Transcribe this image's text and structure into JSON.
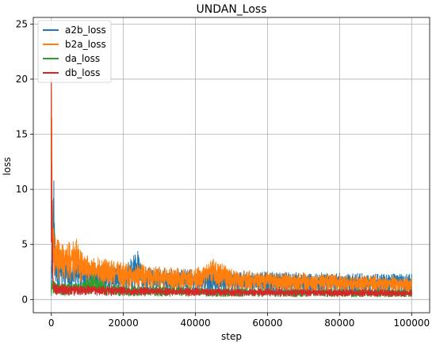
{
  "chart_data": {
    "type": "line",
    "title": "UNDAN_Loss",
    "xlabel": "step",
    "ylabel": "loss",
    "xlim": [
      -5000,
      105000
    ],
    "ylim": [
      -1.2,
      25.6
    ],
    "xticks": [
      0,
      20000,
      40000,
      60000,
      80000,
      100000
    ],
    "yticks": [
      0,
      5,
      10,
      15,
      20,
      25
    ],
    "grid": true,
    "legend_position": "top-left",
    "series": [
      {
        "name": "a2b_loss",
        "color": "#1f77b4",
        "x": [
          0,
          300,
          700,
          1000,
          1500,
          2000,
          3000,
          4000,
          5000,
          6000,
          8000,
          10000,
          12000,
          15000,
          20000,
          24000,
          25000,
          30000,
          35000,
          40000,
          45000,
          50000,
          55000,
          60000,
          65000,
          70000,
          75000,
          80000,
          85000,
          90000,
          95000,
          100000
        ],
        "values": [
          3.0,
          8.5,
          10.8,
          5.8,
          4.6,
          4.1,
          3.9,
          3.8,
          3.7,
          3.6,
          3.5,
          3.4,
          3.3,
          3.2,
          3.1,
          4.4,
          3.0,
          2.9,
          2.8,
          2.75,
          2.7,
          2.65,
          2.6,
          2.55,
          2.5,
          2.45,
          2.45,
          2.4,
          2.4,
          2.35,
          2.35,
          2.3
        ]
      },
      {
        "name": "b2a_loss",
        "color": "#ff7f0e",
        "x": [
          0,
          150,
          300,
          600,
          1000,
          2000,
          3000,
          5000,
          7000,
          10000,
          13000,
          15000,
          20000,
          25000,
          30000,
          35000,
          40000,
          45000,
          50000,
          55000,
          60000,
          65000,
          70000,
          75000,
          80000,
          85000,
          90000,
          95000,
          100000
        ],
        "values": [
          21.0,
          16.5,
          9.0,
          6.5,
          6.0,
          5.4,
          5.0,
          5.2,
          5.5,
          4.0,
          3.8,
          3.7,
          3.4,
          3.2,
          3.0,
          2.9,
          2.8,
          3.7,
          2.8,
          2.6,
          2.5,
          2.4,
          2.4,
          2.3,
          2.3,
          2.2,
          2.2,
          2.1,
          2.0
        ]
      },
      {
        "name": "da_loss",
        "color": "#2ca02c",
        "x": [
          0,
          500,
          1000,
          3000,
          5000,
          8000,
          12000,
          15000,
          20000,
          30000,
          40000,
          50000,
          60000,
          70000,
          80000,
          90000,
          100000
        ],
        "values": [
          1.5,
          2.0,
          1.6,
          1.5,
          1.6,
          1.5,
          2.3,
          1.4,
          1.3,
          1.2,
          1.1,
          1.0,
          1.0,
          0.95,
          0.95,
          0.9,
          0.9
        ]
      },
      {
        "name": "db_loss",
        "color": "#d62728",
        "x": [
          0,
          200,
          500,
          1000,
          3000,
          5000,
          10000,
          20000,
          30000,
          40000,
          50000,
          60000,
          70000,
          80000,
          90000,
          100000
        ],
        "values": [
          20.0,
          9.0,
          1.8,
          1.5,
          1.4,
          1.3,
          1.3,
          1.2,
          1.1,
          1.1,
          1.0,
          1.0,
          0.95,
          0.95,
          0.9,
          0.9
        ]
      }
    ]
  }
}
